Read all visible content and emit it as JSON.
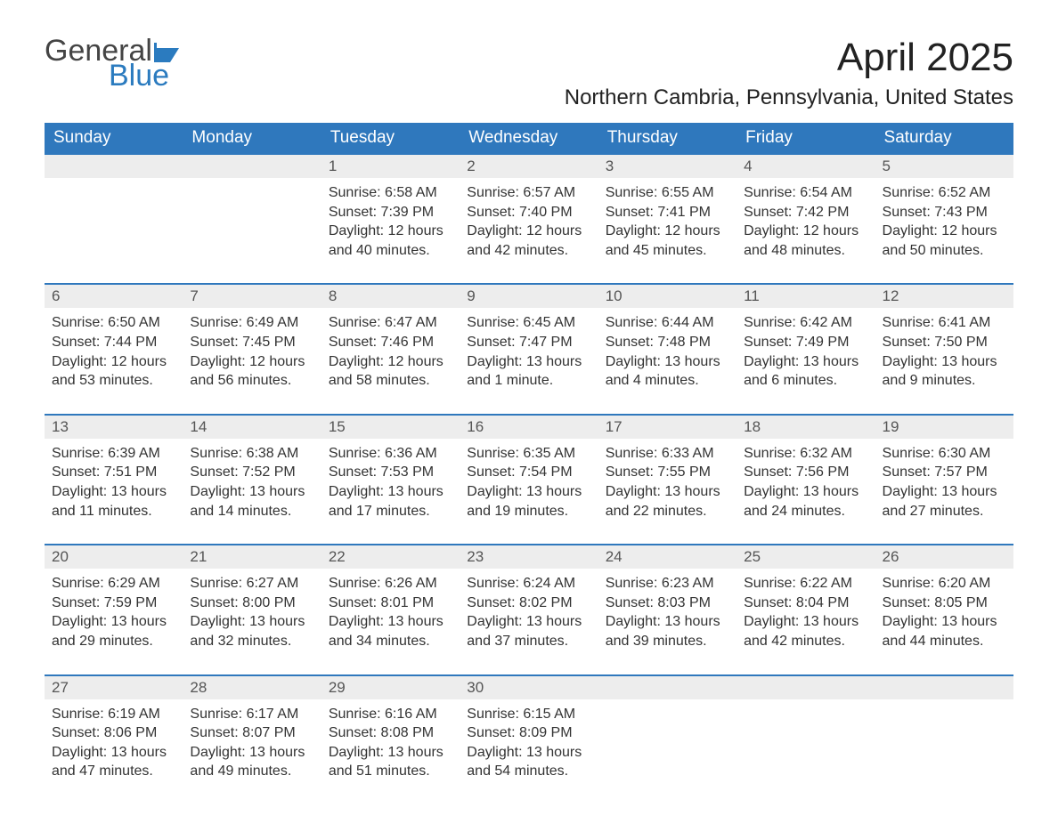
{
  "brand": {
    "word1": "General",
    "word2": "Blue",
    "text_color": "#444444",
    "accent_color": "#2b7bbf"
  },
  "title": "April 2025",
  "location": "Northern Cambria, Pennsylvania, United States",
  "header_bg": "#2f78bd",
  "header_fg": "#ffffff",
  "daynum_bg": "#ededed",
  "row_border": "#2f78bd",
  "columns": [
    "Sunday",
    "Monday",
    "Tuesday",
    "Wednesday",
    "Thursday",
    "Friday",
    "Saturday"
  ],
  "weeks": [
    [
      {
        "n": "",
        "sr": "",
        "ss": "",
        "dl": ""
      },
      {
        "n": "",
        "sr": "",
        "ss": "",
        "dl": ""
      },
      {
        "n": "1",
        "sr": "Sunrise: 6:58 AM",
        "ss": "Sunset: 7:39 PM",
        "dl": "Daylight: 12 hours and 40 minutes."
      },
      {
        "n": "2",
        "sr": "Sunrise: 6:57 AM",
        "ss": "Sunset: 7:40 PM",
        "dl": "Daylight: 12 hours and 42 minutes."
      },
      {
        "n": "3",
        "sr": "Sunrise: 6:55 AM",
        "ss": "Sunset: 7:41 PM",
        "dl": "Daylight: 12 hours and 45 minutes."
      },
      {
        "n": "4",
        "sr": "Sunrise: 6:54 AM",
        "ss": "Sunset: 7:42 PM",
        "dl": "Daylight: 12 hours and 48 minutes."
      },
      {
        "n": "5",
        "sr": "Sunrise: 6:52 AM",
        "ss": "Sunset: 7:43 PM",
        "dl": "Daylight: 12 hours and 50 minutes."
      }
    ],
    [
      {
        "n": "6",
        "sr": "Sunrise: 6:50 AM",
        "ss": "Sunset: 7:44 PM",
        "dl": "Daylight: 12 hours and 53 minutes."
      },
      {
        "n": "7",
        "sr": "Sunrise: 6:49 AM",
        "ss": "Sunset: 7:45 PM",
        "dl": "Daylight: 12 hours and 56 minutes."
      },
      {
        "n": "8",
        "sr": "Sunrise: 6:47 AM",
        "ss": "Sunset: 7:46 PM",
        "dl": "Daylight: 12 hours and 58 minutes."
      },
      {
        "n": "9",
        "sr": "Sunrise: 6:45 AM",
        "ss": "Sunset: 7:47 PM",
        "dl": "Daylight: 13 hours and 1 minute."
      },
      {
        "n": "10",
        "sr": "Sunrise: 6:44 AM",
        "ss": "Sunset: 7:48 PM",
        "dl": "Daylight: 13 hours and 4 minutes."
      },
      {
        "n": "11",
        "sr": "Sunrise: 6:42 AM",
        "ss": "Sunset: 7:49 PM",
        "dl": "Daylight: 13 hours and 6 minutes."
      },
      {
        "n": "12",
        "sr": "Sunrise: 6:41 AM",
        "ss": "Sunset: 7:50 PM",
        "dl": "Daylight: 13 hours and 9 minutes."
      }
    ],
    [
      {
        "n": "13",
        "sr": "Sunrise: 6:39 AM",
        "ss": "Sunset: 7:51 PM",
        "dl": "Daylight: 13 hours and 11 minutes."
      },
      {
        "n": "14",
        "sr": "Sunrise: 6:38 AM",
        "ss": "Sunset: 7:52 PM",
        "dl": "Daylight: 13 hours and 14 minutes."
      },
      {
        "n": "15",
        "sr": "Sunrise: 6:36 AM",
        "ss": "Sunset: 7:53 PM",
        "dl": "Daylight: 13 hours and 17 minutes."
      },
      {
        "n": "16",
        "sr": "Sunrise: 6:35 AM",
        "ss": "Sunset: 7:54 PM",
        "dl": "Daylight: 13 hours and 19 minutes."
      },
      {
        "n": "17",
        "sr": "Sunrise: 6:33 AM",
        "ss": "Sunset: 7:55 PM",
        "dl": "Daylight: 13 hours and 22 minutes."
      },
      {
        "n": "18",
        "sr": "Sunrise: 6:32 AM",
        "ss": "Sunset: 7:56 PM",
        "dl": "Daylight: 13 hours and 24 minutes."
      },
      {
        "n": "19",
        "sr": "Sunrise: 6:30 AM",
        "ss": "Sunset: 7:57 PM",
        "dl": "Daylight: 13 hours and 27 minutes."
      }
    ],
    [
      {
        "n": "20",
        "sr": "Sunrise: 6:29 AM",
        "ss": "Sunset: 7:59 PM",
        "dl": "Daylight: 13 hours and 29 minutes."
      },
      {
        "n": "21",
        "sr": "Sunrise: 6:27 AM",
        "ss": "Sunset: 8:00 PM",
        "dl": "Daylight: 13 hours and 32 minutes."
      },
      {
        "n": "22",
        "sr": "Sunrise: 6:26 AM",
        "ss": "Sunset: 8:01 PM",
        "dl": "Daylight: 13 hours and 34 minutes."
      },
      {
        "n": "23",
        "sr": "Sunrise: 6:24 AM",
        "ss": "Sunset: 8:02 PM",
        "dl": "Daylight: 13 hours and 37 minutes."
      },
      {
        "n": "24",
        "sr": "Sunrise: 6:23 AM",
        "ss": "Sunset: 8:03 PM",
        "dl": "Daylight: 13 hours and 39 minutes."
      },
      {
        "n": "25",
        "sr": "Sunrise: 6:22 AM",
        "ss": "Sunset: 8:04 PM",
        "dl": "Daylight: 13 hours and 42 minutes."
      },
      {
        "n": "26",
        "sr": "Sunrise: 6:20 AM",
        "ss": "Sunset: 8:05 PM",
        "dl": "Daylight: 13 hours and 44 minutes."
      }
    ],
    [
      {
        "n": "27",
        "sr": "Sunrise: 6:19 AM",
        "ss": "Sunset: 8:06 PM",
        "dl": "Daylight: 13 hours and 47 minutes."
      },
      {
        "n": "28",
        "sr": "Sunrise: 6:17 AM",
        "ss": "Sunset: 8:07 PM",
        "dl": "Daylight: 13 hours and 49 minutes."
      },
      {
        "n": "29",
        "sr": "Sunrise: 6:16 AM",
        "ss": "Sunset: 8:08 PM",
        "dl": "Daylight: 13 hours and 51 minutes."
      },
      {
        "n": "30",
        "sr": "Sunrise: 6:15 AM",
        "ss": "Sunset: 8:09 PM",
        "dl": "Daylight: 13 hours and 54 minutes."
      },
      {
        "n": "",
        "sr": "",
        "ss": "",
        "dl": ""
      },
      {
        "n": "",
        "sr": "",
        "ss": "",
        "dl": ""
      },
      {
        "n": "",
        "sr": "",
        "ss": "",
        "dl": ""
      }
    ]
  ]
}
